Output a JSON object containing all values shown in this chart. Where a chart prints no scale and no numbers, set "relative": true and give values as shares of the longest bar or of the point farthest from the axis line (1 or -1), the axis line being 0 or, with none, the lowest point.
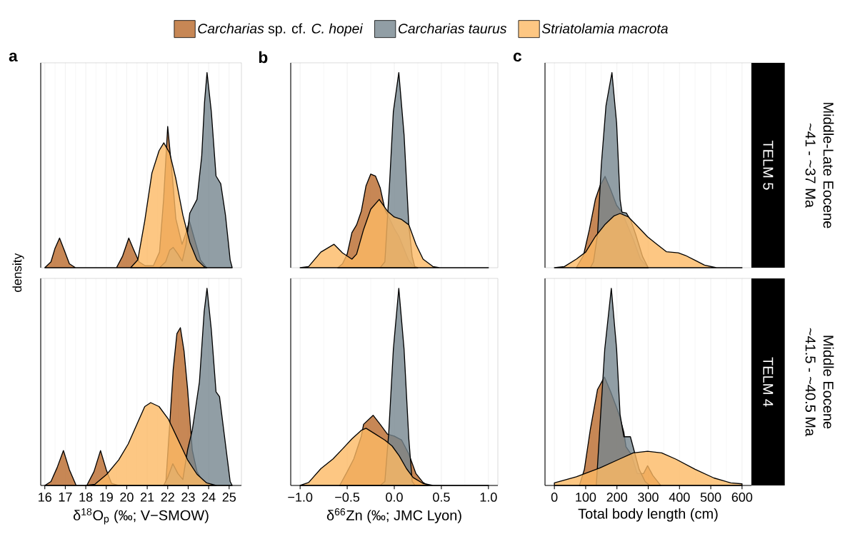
{
  "chart_data": [
    {
      "type": "area",
      "relative": true,
      "title": "a",
      "ylabel": "density",
      "legend": "top",
      "grid": "x",
      "tick_labels": false,
      "xlim": [
        15.8,
        25.6
      ],
      "xticks": [
        16,
        17,
        18,
        19,
        20,
        21,
        22,
        23,
        24,
        25
      ],
      "series": [
        {
          "name": "*Carcharias* sp. cf. *C. hopei*",
          "color": "#b9692a",
          "x": [
            16.0,
            16.3,
            16.5,
            16.72,
            16.95,
            17.2,
            17.5,
            19.5,
            19.8,
            20.1,
            20.35,
            20.6,
            20.9,
            21.3,
            21.6,
            21.8,
            22.0,
            22.2,
            22.4,
            22.7,
            22.9,
            23.06,
            23.3,
            23.6,
            23.9
          ],
          "values": [
            0,
            0.03,
            0.1,
            0.152,
            0.09,
            0.02,
            0,
            0,
            0.06,
            0.152,
            0.09,
            0.03,
            0.01,
            0.01,
            0.08,
            0.35,
            0.724,
            0.5,
            0.25,
            0.12,
            0.18,
            0.24,
            0.15,
            0.04,
            0
          ]
        },
        {
          "name": "*Carcharias taurus*",
          "color": "#76868f",
          "x": [
            21.6,
            21.9,
            22.1,
            22.27,
            22.5,
            22.71,
            22.9,
            23.08,
            23.43,
            23.66,
            23.8,
            23.92,
            24.13,
            24.36,
            24.59,
            24.82,
            25.05,
            25.15
          ],
          "values": [
            0,
            0.03,
            0.09,
            0.104,
            0.07,
            0.034,
            0.12,
            0.28,
            0.35,
            0.57,
            0.85,
            1.0,
            0.8,
            0.47,
            0.43,
            0.27,
            0.04,
            0
          ]
        },
        {
          "name": "*Striatolamia macrota*",
          "color": "#fdb964",
          "x": [
            20.19,
            20.54,
            20.88,
            21.23,
            21.58,
            21.81,
            22.1,
            22.39,
            22.74,
            23.08,
            23.43,
            23.78,
            23.9
          ],
          "values": [
            0,
            0.04,
            0.24,
            0.485,
            0.6,
            0.64,
            0.587,
            0.46,
            0.27,
            0.13,
            0.04,
            0.005,
            0
          ]
        }
      ]
    },
    {
      "type": "area",
      "relative": true,
      "title": "b",
      "grid": "x",
      "tick_labels": false,
      "xlim": [
        -1.1,
        1.1
      ],
      "xticks": [
        -1,
        -0.5,
        0,
        0.5,
        1
      ],
      "series": [
        {
          "color": "#b9692a",
          "x": [
            -0.6,
            -0.55,
            -0.5,
            -0.45,
            -0.4,
            -0.35,
            -0.3,
            -0.25,
            -0.2,
            -0.15,
            -0.1,
            -0.05,
            0.0,
            0.05,
            0.1,
            0.15,
            0.2,
            0.25
          ],
          "values": [
            0,
            0.02,
            0.07,
            0.18,
            0.22,
            0.29,
            0.42,
            0.48,
            0.47,
            0.41,
            0.3,
            0.25,
            0.2,
            0.16,
            0.1,
            0.04,
            0.01,
            0
          ]
        },
        {
          "color": "#76868f",
          "x": [
            -0.15,
            -0.1,
            -0.073,
            -0.048,
            -0.01,
            0.048,
            0.104,
            0.154,
            0.19,
            0.22
          ],
          "values": [
            0,
            0.03,
            0.25,
            0.45,
            0.8,
            1.0,
            0.68,
            0.22,
            0.057,
            0
          ]
        },
        {
          "color": "#fdb964",
          "x": [
            -1.0,
            -0.91,
            -0.78,
            -0.64,
            -0.55,
            -0.45,
            -0.4,
            -0.326,
            -0.25,
            -0.16,
            -0.073,
            0.0,
            0.078,
            0.154,
            0.23,
            0.306,
            0.41,
            0.48,
            1.0
          ],
          "values": [
            0,
            0.006,
            0.08,
            0.12,
            0.076,
            0.044,
            0.07,
            0.196,
            0.3,
            0.35,
            0.29,
            0.26,
            0.247,
            0.22,
            0.12,
            0.044,
            0.006,
            0,
            0
          ]
        }
      ]
    },
    {
      "type": "area",
      "relative": true,
      "title": "c",
      "grid": "x",
      "tick_labels": false,
      "xlim": [
        -30,
        630
      ],
      "xticks": [
        0,
        100,
        200,
        300,
        400,
        500,
        600
      ],
      "annotations": [
        "TELM 5",
        "Middle-Late Eocene",
        "~41 - ~37 Ma"
      ],
      "series": [
        {
          "color": "#b9692a",
          "x": [
            70,
            93,
            112,
            131,
            146,
            162,
            180,
            199,
            216,
            230,
            252,
            275,
            300
          ],
          "values": [
            0,
            0.063,
            0.196,
            0.35,
            0.42,
            0.468,
            0.4,
            0.32,
            0.285,
            0.23,
            0.146,
            0.044,
            0
          ]
        },
        {
          "color": "#76868f",
          "x": [
            115,
            125,
            138,
            150,
            165,
            184,
            199,
            210,
            216,
            230,
            245,
            260,
            282,
            300
          ],
          "values": [
            0,
            0.03,
            0.17,
            0.525,
            0.83,
            1.0,
            0.74,
            0.35,
            0.285,
            0.28,
            0.24,
            0.17,
            0.057,
            0
          ]
        },
        {
          "color": "#fdb964",
          "x": [
            0,
            32,
            70,
            100,
            131,
            161,
            191,
            210,
            237,
            267,
            298,
            328,
            358,
            396,
            419,
            450,
            480,
            518,
            600
          ],
          "values": [
            0,
            0.006,
            0.044,
            0.08,
            0.16,
            0.22,
            0.266,
            0.278,
            0.26,
            0.21,
            0.158,
            0.12,
            0.082,
            0.076,
            0.063,
            0.038,
            0.013,
            0,
            0
          ]
        }
      ]
    },
    {
      "type": "area",
      "relative": true,
      "xlabel": "δ$^{18}$O$_{p}$ (‰; V−SMOW)",
      "grid": "x",
      "tick_labels": "x",
      "xlim": [
        15.8,
        25.6
      ],
      "xticks": [
        16,
        17,
        18,
        19,
        20,
        21,
        22,
        23,
        24,
        25
      ],
      "series": [
        {
          "color": "#b9692a",
          "x": [
            16.0,
            16.3,
            16.6,
            16.91,
            17.2,
            17.53,
            18.05,
            18.4,
            18.72,
            19.0,
            19.26,
            19.6,
            21.9,
            22.1,
            22.27,
            22.45,
            22.62,
            22.8,
            22.97,
            23.2,
            23.43,
            23.78,
            24.1
          ],
          "values": [
            0,
            0.02,
            0.09,
            0.177,
            0.08,
            0,
            0,
            0.07,
            0.177,
            0.08,
            0.01,
            0,
            0,
            0.31,
            0.59,
            0.77,
            0.8,
            0.68,
            0.49,
            0.18,
            0.07,
            0.01,
            0
          ]
        },
        {
          "color": "#76868f",
          "x": [
            21.8,
            22.0,
            22.25,
            22.5,
            22.74,
            22.97,
            23.2,
            23.55,
            23.78,
            23.92,
            24.13,
            24.36,
            24.53,
            24.76,
            25.05,
            25.15
          ],
          "values": [
            0,
            0.04,
            0.11,
            0.06,
            0.03,
            0.18,
            0.28,
            0.525,
            0.88,
            1.0,
            0.79,
            0.475,
            0.45,
            0.26,
            0.02,
            0
          ]
        },
        {
          "color": "#fdb964",
          "x": [
            17.99,
            18.45,
            19.03,
            19.61,
            20.07,
            20.54,
            20.88,
            21.17,
            21.58,
            22.04,
            22.5,
            22.97,
            23.43,
            23.9,
            24.36
          ],
          "values": [
            0,
            0.006,
            0.057,
            0.13,
            0.21,
            0.32,
            0.4,
            0.42,
            0.4,
            0.335,
            0.234,
            0.13,
            0.057,
            0.013,
            0
          ]
        }
      ]
    },
    {
      "type": "area",
      "relative": true,
      "xlabel": "δ$^{66}$Zn (‰; JMC Lyon)",
      "grid": "x",
      "tick_labels": "x",
      "xlim": [
        -1.1,
        1.1
      ],
      "xticks": [
        {
          "value": -1,
          "label": "−1.0"
        },
        {
          "value": -0.5,
          "label": "−0.5"
        },
        {
          "value": 0,
          "label": "0.0"
        },
        0.5,
        {
          "value": 1,
          "label": "1.0"
        }
      ],
      "series": [
        {
          "color": "#b9692a",
          "x": [
            -0.58,
            -0.5,
            -0.43,
            -0.35,
            -0.326,
            -0.225,
            -0.15,
            -0.073,
            0.0,
            0.078,
            0.154,
            0.23,
            0.306,
            0.36
          ],
          "values": [
            0,
            0.07,
            0.135,
            0.25,
            0.31,
            0.356,
            0.31,
            0.26,
            0.25,
            0.23,
            0.16,
            0.06,
            0.015,
            0
          ]
        },
        {
          "color": "#76868f",
          "x": [
            -0.15,
            -0.1,
            -0.06,
            -0.01,
            0.048,
            0.104,
            0.154,
            0.19,
            0.22
          ],
          "values": [
            0,
            0.02,
            0.26,
            0.69,
            1.0,
            0.69,
            0.24,
            0.02,
            0
          ]
        },
        {
          "color": "#fdb964",
          "x": [
            -1.0,
            -0.91,
            -0.78,
            -0.65,
            -0.55,
            -0.45,
            -0.35,
            -0.3,
            -0.2,
            -0.1,
            -0.023,
            0.053,
            0.13,
            0.2,
            0.306,
            0.41,
            1.0
          ],
          "values": [
            0,
            0.015,
            0.085,
            0.135,
            0.185,
            0.236,
            0.28,
            0.29,
            0.26,
            0.23,
            0.2,
            0.15,
            0.085,
            0.04,
            0.01,
            0,
            0
          ]
        }
      ]
    },
    {
      "type": "area",
      "relative": true,
      "xlabel": "Total body length (cm)",
      "grid": "x",
      "tick_labels": "x",
      "xlim": [
        -30,
        630
      ],
      "xticks": [
        0,
        100,
        200,
        300,
        400,
        500,
        600
      ],
      "annotations": [
        "TELM 4",
        "Middle Eocene",
        "~41.5 - ~40.5 Ma"
      ],
      "series": [
        {
          "color": "#b9692a",
          "x": [
            80,
            96,
            115,
            138,
            160,
            180,
            207,
            222,
            229,
            245,
            265,
            285,
            298,
            315,
            340
          ],
          "values": [
            0,
            0.082,
            0.285,
            0.487,
            0.55,
            0.475,
            0.36,
            0.27,
            0.196,
            0.16,
            0.06,
            0.06,
            0.1,
            0.05,
            0
          ]
        },
        {
          "color": "#76868f",
          "x": [
            134,
            146,
            161,
            182,
            199,
            210,
            222,
            243,
            256,
            271,
            290,
            305
          ],
          "values": [
            0,
            0.31,
            0.69,
            1.0,
            0.69,
            0.36,
            0.247,
            0.247,
            0.17,
            0.082,
            0.02,
            0
          ]
        },
        {
          "color": "#fdb964",
          "x": [
            0,
            70,
            146,
            207,
            252,
            298,
            343,
            389,
            450,
            510,
            564,
            600
          ],
          "values": [
            0.013,
            0.044,
            0.089,
            0.133,
            0.165,
            0.173,
            0.165,
            0.133,
            0.082,
            0.038,
            0.013,
            0.008
          ]
        }
      ]
    }
  ]
}
